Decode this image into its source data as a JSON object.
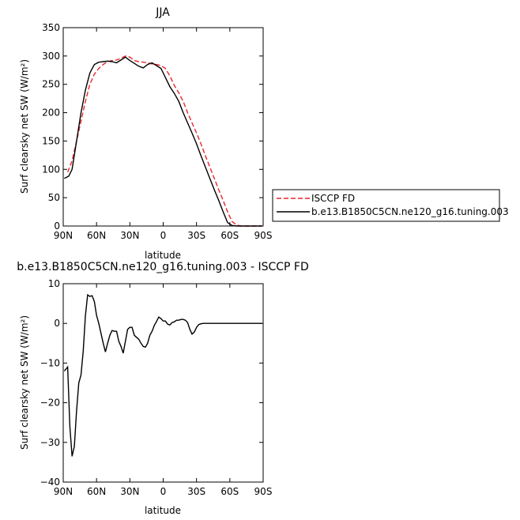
{
  "chart_data": [
    {
      "type": "line",
      "title": "JJA",
      "xlabel": "latitude",
      "ylabel": "Surf clearsky net SW (W/m²)",
      "xlim": [
        90,
        -90
      ],
      "ylim": [
        0,
        350
      ],
      "xticks": [
        90,
        60,
        30,
        0,
        -30,
        -60,
        -90
      ],
      "xtick_labels": [
        "90N",
        "60N",
        "30N",
        "0",
        "30S",
        "60S",
        "90S"
      ],
      "yticks": [
        0,
        50,
        100,
        150,
        200,
        250,
        300,
        350
      ],
      "ytick_labels": [
        "0",
        "50",
        "100",
        "150",
        "200",
        "250",
        "300",
        "350"
      ],
      "legend": "right",
      "series": [
        {
          "name": "ISCCP FD",
          "color": "#e8262d",
          "dash": "dashed",
          "x": [
            86,
            82,
            78,
            74,
            70,
            66,
            62,
            58,
            54,
            50,
            46,
            42,
            38,
            34,
            30,
            26,
            22,
            18,
            14,
            10,
            6,
            2,
            -2,
            -6,
            -10,
            -14,
            -18,
            -22,
            -26,
            -30,
            -34,
            -38,
            -42,
            -46,
            -50,
            -54,
            -58,
            -62,
            -66,
            -70,
            -74,
            -78,
            -82,
            -86,
            -89
          ],
          "y": [
            95,
            115,
            150,
            185,
            220,
            250,
            268,
            278,
            285,
            290,
            292,
            293,
            296,
            300,
            298,
            292,
            290,
            289,
            288,
            286,
            285,
            283,
            278,
            265,
            248,
            235,
            220,
            200,
            182,
            164,
            145,
            124,
            104,
            84,
            64,
            45,
            25,
            8,
            2,
            0,
            0,
            0,
            0,
            0,
            0
          ]
        },
        {
          "name": "b.e13.B1850C5CN.ne120_g16.tuning.003",
          "color": "#000000",
          "dash": "solid",
          "x": [
            89,
            85,
            82,
            78,
            74,
            70,
            66,
            62,
            58,
            54,
            50,
            46,
            42,
            38,
            34,
            30,
            26,
            22,
            18,
            14,
            10,
            6,
            2,
            -2,
            -6,
            -10,
            -14,
            -18,
            -22,
            -26,
            -30,
            -34,
            -38,
            -42,
            -46,
            -50,
            -54,
            -58,
            -62,
            -66,
            -70,
            -74,
            -78,
            -82,
            -86,
            -89
          ],
          "y": [
            84,
            88,
            100,
            150,
            200,
            240,
            270,
            285,
            289,
            290,
            291,
            290,
            288,
            293,
            298,
            292,
            287,
            282,
            279,
            285,
            288,
            283,
            278,
            262,
            246,
            234,
            220,
            200,
            182,
            164,
            145,
            124,
            104,
            84,
            64,
            45,
            25,
            6,
            1,
            0,
            0,
            0,
            0,
            0,
            0,
            0
          ]
        }
      ]
    },
    {
      "type": "line",
      "title": "b.e13.B1850C5CN.ne120_g16.tuning.003 - ISCCP FD",
      "xlabel": "latitude",
      "ylabel": "Surf clearsky net SW (W/m²)",
      "xlim": [
        90,
        -90
      ],
      "ylim": [
        -40,
        10
      ],
      "xticks": [
        90,
        60,
        30,
        0,
        -30,
        -60,
        -90
      ],
      "xtick_labels": [
        "90N",
        "60N",
        "30N",
        "0",
        "30S",
        "60S",
        "90S"
      ],
      "yticks": [
        -40,
        -30,
        -20,
        -10,
        0,
        10
      ],
      "ytick_labels": [
        "−40",
        "−30",
        "−20",
        "−10",
        "0",
        "10"
      ],
      "series": [
        {
          "color": "#000000",
          "dash": "solid",
          "x": [
            89,
            86,
            84,
            82,
            80,
            78,
            76,
            74,
            72,
            70,
            68,
            66,
            64,
            62,
            60,
            58,
            56,
            54,
            52,
            50,
            48,
            46,
            44,
            42,
            40,
            38,
            36,
            34,
            32,
            30,
            28,
            26,
            24,
            22,
            20,
            18,
            16,
            14,
            12,
            10,
            8,
            6,
            4,
            2,
            0,
            -2,
            -4,
            -6,
            -8,
            -10,
            -12,
            -14,
            -16,
            -18,
            -20,
            -22,
            -24,
            -26,
            -28,
            -30,
            -32,
            -34,
            -36,
            -38,
            -40,
            -42,
            -44,
            -46,
            -48,
            -50,
            -52,
            -54,
            -56,
            -58,
            -60,
            -62,
            -64,
            -66,
            -68,
            -70,
            -72,
            -74,
            -76,
            -78,
            -80,
            -82,
            -84,
            -86,
            -88,
            -89
          ],
          "y": [
            -12,
            -11,
            -26,
            -33.5,
            -31,
            -22,
            -15,
            -13,
            -7,
            2,
            7.2,
            6.8,
            7,
            5.5,
            2,
            0,
            -2.5,
            -5,
            -7.2,
            -5,
            -3,
            -1.8,
            -2,
            -2,
            -4.5,
            -5.8,
            -7.5,
            -4.5,
            -1.5,
            -1,
            -1,
            -3,
            -3.5,
            -4,
            -5,
            -5.8,
            -6,
            -5,
            -3,
            -2,
            -0.5,
            0.5,
            1.6,
            1.2,
            0.6,
            0.6,
            -0.2,
            -0.4,
            0.2,
            0.4,
            0.8,
            0.8,
            1,
            1,
            0.8,
            0.2,
            -1.5,
            -2.7,
            -2.2,
            -1,
            -0.3,
            -0.1,
            0,
            0,
            0,
            0,
            0,
            0,
            0,
            0,
            0,
            0,
            0,
            0,
            0,
            0,
            0,
            0,
            0,
            0,
            0,
            0,
            0,
            0,
            0,
            0,
            0,
            0,
            0,
            0
          ]
        }
      ]
    }
  ]
}
